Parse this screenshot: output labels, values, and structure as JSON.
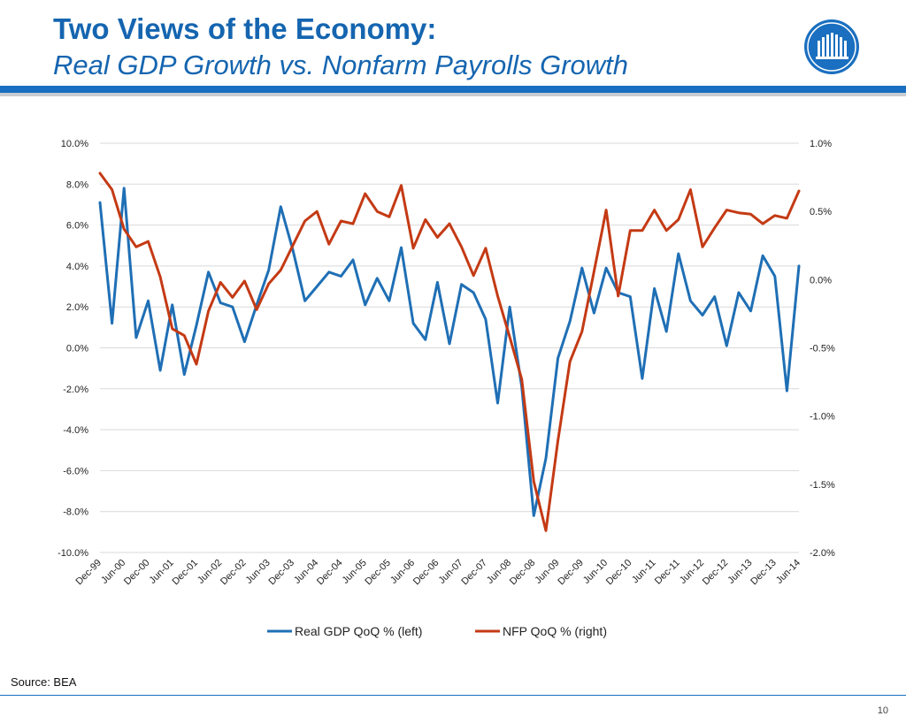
{
  "slide": {
    "title_line1": "Two Views of the Economy:",
    "title_line2": "Real GDP Growth vs. Nonfarm Payrolls Growth",
    "source": "Source:  BEA",
    "page_number": "10"
  },
  "colors": {
    "accent": "#1a6fc0",
    "gdp": "#1f6fb5",
    "nfp": "#c43a14",
    "grid": "#d9d9d9"
  },
  "chart_data": {
    "type": "line",
    "x": [
      "Dec-99",
      "Mar-00",
      "Jun-00",
      "Sep-00",
      "Dec-00",
      "Mar-01",
      "Jun-01",
      "Sep-01",
      "Dec-01",
      "Mar-02",
      "Jun-02",
      "Sep-02",
      "Dec-02",
      "Mar-03",
      "Jun-03",
      "Sep-03",
      "Dec-03",
      "Mar-04",
      "Jun-04",
      "Sep-04",
      "Dec-04",
      "Mar-05",
      "Jun-05",
      "Sep-05",
      "Dec-05",
      "Mar-06",
      "Jun-06",
      "Sep-06",
      "Dec-06",
      "Mar-07",
      "Jun-07",
      "Sep-07",
      "Dec-07",
      "Mar-08",
      "Jun-08",
      "Sep-08",
      "Dec-08",
      "Mar-09",
      "Jun-09",
      "Sep-09",
      "Dec-09",
      "Mar-10",
      "Jun-10",
      "Sep-10",
      "Dec-10",
      "Mar-11",
      "Jun-11",
      "Sep-11",
      "Dec-11",
      "Mar-12",
      "Jun-12",
      "Sep-12",
      "Dec-12",
      "Mar-13",
      "Jun-13",
      "Sep-13",
      "Dec-13",
      "Mar-14",
      "Jun-14"
    ],
    "x_tick_labels": [
      "Dec-99",
      "Jun-00",
      "Dec-00",
      "Jun-01",
      "Dec-01",
      "Jun-02",
      "Dec-02",
      "Jun-03",
      "Dec-03",
      "Jun-04",
      "Dec-04",
      "Jun-05",
      "Dec-05",
      "Jun-06",
      "Dec-06",
      "Jun-07",
      "Dec-07",
      "Jun-08",
      "Dec-08",
      "Jun-09",
      "Dec-09",
      "Jun-10",
      "Dec-10",
      "Jun-11",
      "Dec-11",
      "Jun-12",
      "Dec-12",
      "Jun-13",
      "Dec-13",
      "Jun-14"
    ],
    "series": [
      {
        "name": "Real GDP QoQ % (left)",
        "axis": "left",
        "color": "#1f6fb5",
        "values": [
          7.1,
          1.2,
          7.8,
          0.5,
          2.3,
          -1.1,
          2.1,
          -1.3,
          1.1,
          3.7,
          2.2,
          2.0,
          0.3,
          2.1,
          3.8,
          6.9,
          4.8,
          2.3,
          3.0,
          3.7,
          3.5,
          4.3,
          2.1,
          3.4,
          2.3,
          4.9,
          1.2,
          0.4,
          3.2,
          0.2,
          3.1,
          2.7,
          1.4,
          -2.7,
          2.0,
          -1.9,
          -8.2,
          -5.4,
          -0.5,
          1.3,
          3.9,
          1.7,
          3.9,
          2.7,
          2.5,
          -1.5,
          2.9,
          0.8,
          4.6,
          2.3,
          1.6,
          2.5,
          0.1,
          2.7,
          1.8,
          4.5,
          3.5,
          -2.1,
          4.0
        ]
      },
      {
        "name": "NFP QoQ % (right)",
        "axis": "right",
        "color": "#c43a14",
        "values": [
          0.78,
          0.66,
          0.37,
          0.24,
          0.28,
          0.02,
          -0.36,
          -0.41,
          -0.62,
          -0.23,
          -0.02,
          -0.13,
          -0.01,
          -0.22,
          -0.03,
          0.07,
          0.25,
          0.43,
          0.5,
          0.26,
          0.43,
          0.41,
          0.63,
          0.5,
          0.46,
          0.69,
          0.23,
          0.44,
          0.31,
          0.41,
          0.24,
          0.03,
          0.23,
          -0.12,
          -0.42,
          -0.73,
          -1.48,
          -1.84,
          -1.18,
          -0.6,
          -0.38,
          0.06,
          0.51,
          -0.12,
          0.36,
          0.36,
          0.51,
          0.36,
          0.44,
          0.66,
          0.24,
          0.38,
          0.51,
          0.49,
          0.48,
          0.41,
          0.47,
          0.45,
          0.65
        ]
      }
    ],
    "left_axis": {
      "ylim": [
        -10,
        10
      ],
      "ticks": [
        "10.0%",
        "8.0%",
        "6.0%",
        "4.0%",
        "2.0%",
        "0.0%",
        "-2.0%",
        "-4.0%",
        "-6.0%",
        "-8.0%",
        "-10.0%"
      ]
    },
    "right_axis": {
      "ylim": [
        -2,
        1
      ],
      "ticks": [
        "1.0%",
        "0.5%",
        "0.0%",
        "-0.5%",
        "-1.0%",
        "-1.5%",
        "-2.0%"
      ]
    },
    "grid": true,
    "legend_position": "bottom"
  }
}
